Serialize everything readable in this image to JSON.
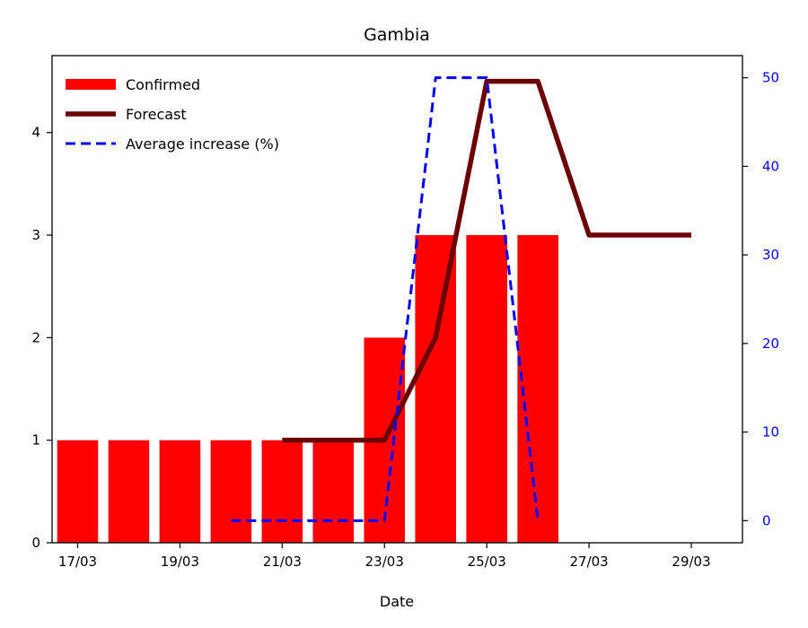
{
  "chart_data": {
    "type": "bar+line",
    "title": "Gambia",
    "xlabel": "Date",
    "ylabel": "",
    "y2label": "",
    "x_ticks": [
      "17/03",
      "19/03",
      "21/03",
      "23/03",
      "25/03",
      "27/03",
      "29/03"
    ],
    "y_ticks": [
      "0",
      "1",
      "2",
      "3",
      "4"
    ],
    "y2_ticks": [
      "0",
      "10",
      "20",
      "30",
      "40",
      "50"
    ],
    "xlim": [
      "16.5/03",
      "30/03"
    ],
    "ylim": [
      0,
      4.75
    ],
    "y2lim": [
      -2.5,
      52.5
    ],
    "legend_position": "top-left",
    "grid": false,
    "series": [
      {
        "name": "Confirmed",
        "kind": "bar",
        "axis": "left",
        "color": "#ff0000",
        "x": [
          "17/03",
          "18/03",
          "19/03",
          "20/03",
          "21/03",
          "22/03",
          "23/03",
          "24/03",
          "25/03",
          "26/03"
        ],
        "values": [
          1,
          1,
          1,
          1,
          1,
          1,
          2,
          3,
          3,
          3
        ]
      },
      {
        "name": "Forecast",
        "kind": "line",
        "axis": "left",
        "color": "#6b0000",
        "x": [
          "21/03",
          "22/03",
          "23/03",
          "24/03",
          "25/03",
          "26/03",
          "27/03",
          "28/03",
          "29/03"
        ],
        "values": [
          1,
          1,
          1,
          2,
          4.5,
          4.5,
          3,
          3,
          3
        ]
      },
      {
        "name": "Average increase (%)",
        "kind": "dashed-line",
        "axis": "right",
        "color": "#0000ff",
        "x": [
          "20/03",
          "21/03",
          "22/03",
          "23/03",
          "24/03",
          "25/03",
          "26/03"
        ],
        "values": [
          0,
          0,
          0,
          0,
          50,
          50,
          0
        ]
      }
    ]
  }
}
